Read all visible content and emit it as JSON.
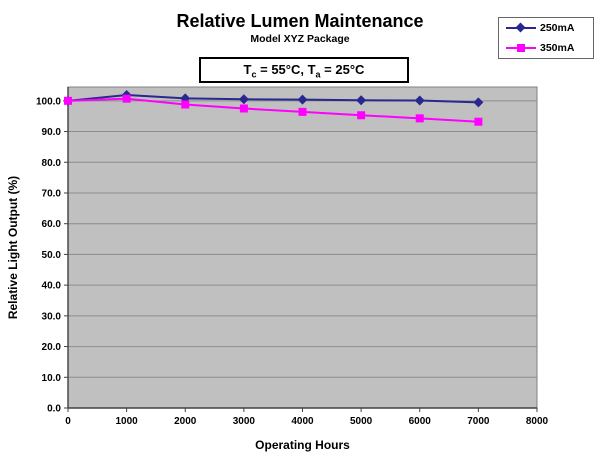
{
  "chart_data": {
    "type": "line",
    "title": "Relative Lumen Maintenance",
    "subtitle": "Model XYZ Package",
    "annotation": "Tc = 55°C, Ta = 25°C",
    "annotation_parts": {
      "t1": "T",
      "s1": "c",
      "t2": " = 55°C, T",
      "s2": "a",
      "t3": " = 25°C"
    },
    "xlabel": "Operating Hours",
    "ylabel": "Relative Light Output (%)",
    "x": [
      0,
      1000,
      2000,
      3000,
      4000,
      5000,
      6000,
      7000
    ],
    "series": [
      {
        "name": "250mA",
        "color": "#28288F",
        "marker": "diamond",
        "values": [
          100.0,
          101.9,
          100.8,
          100.5,
          100.4,
          100.2,
          100.1,
          99.5
        ]
      },
      {
        "name": "350mA",
        "color": "#FF00FF",
        "marker": "square",
        "values": [
          100.0,
          100.7,
          98.8,
          97.5,
          96.4,
          95.3,
          94.3,
          93.2
        ]
      }
    ],
    "xlim": [
      0,
      8000
    ],
    "ylim": [
      0,
      104.5
    ],
    "xticks": [
      0,
      1000,
      2000,
      3000,
      4000,
      5000,
      6000,
      7000,
      8000
    ],
    "xtick_labels": [
      "0",
      "1000",
      "2000",
      "3000",
      "4000",
      "5000",
      "6000",
      "7000",
      "8000"
    ],
    "yticks": [
      0,
      10,
      20,
      30,
      40,
      50,
      60,
      70,
      80,
      90,
      100
    ],
    "ytick_labels": [
      "0.0",
      "10.0",
      "20.0",
      "30.0",
      "40.0",
      "50.0",
      "60.0",
      "70.0",
      "80.0",
      "90.0",
      "100.0"
    ],
    "grid": "horizontal",
    "legend_position": "top-right",
    "colors": {
      "plot_bg": "#C0C0C0",
      "gridline": "#8C8C8C",
      "plot_border": "#808080",
      "axis": "#404040"
    }
  }
}
